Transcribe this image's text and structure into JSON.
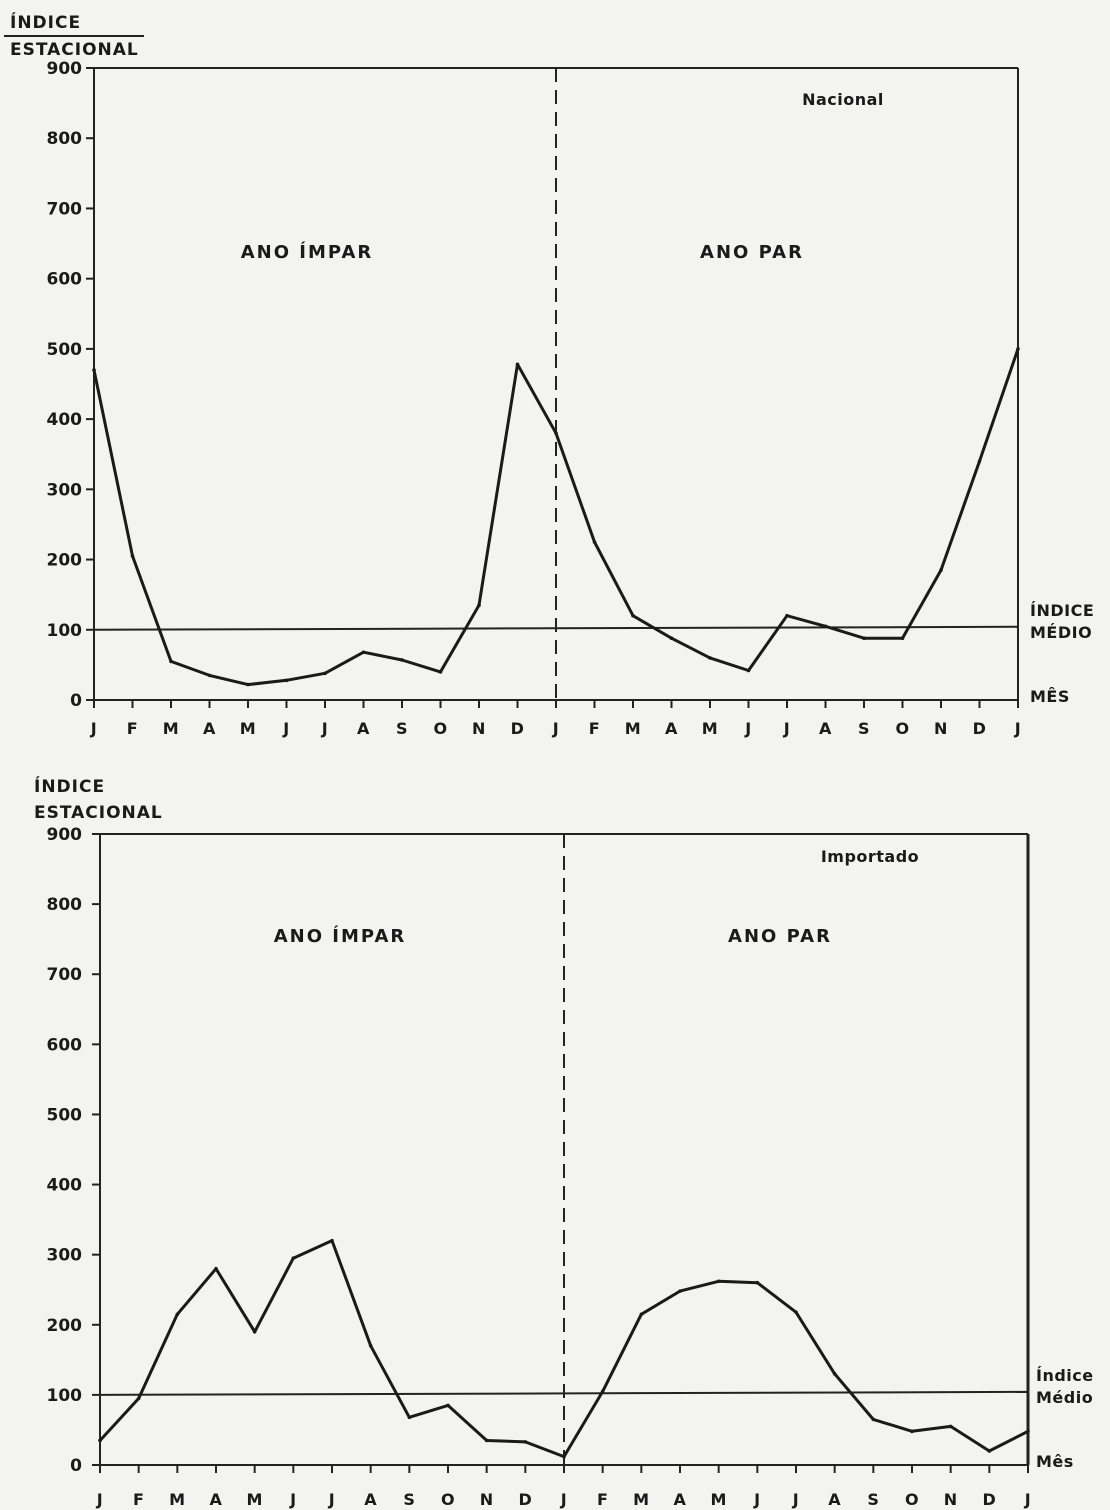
{
  "chart_data": [
    {
      "type": "line",
      "title": "Nacional",
      "ylabel": [
        "ÍNDICE",
        "ESTACIONAL"
      ],
      "ylim": [
        0,
        900
      ],
      "yticks": [
        "0",
        "100",
        "200",
        "300",
        "400",
        "500",
        "600",
        "700",
        "800",
        "900"
      ],
      "categories": [
        "J",
        "F",
        "M",
        "A",
        "M",
        "J",
        "J",
        "A",
        "S",
        "O",
        "N",
        "D",
        "J",
        "F",
        "M",
        "A",
        "M",
        "J",
        "J",
        "A",
        "S",
        "O",
        "N",
        "D",
        "J"
      ],
      "regions": [
        "ANO ÍMPAR",
        "ANO PAR"
      ],
      "reference_line": {
        "value": 100,
        "label": [
          "ÍNDICE",
          "MÉDIO"
        ]
      },
      "xlabel": "MÊS",
      "values": [
        470,
        205,
        55,
        35,
        22,
        28,
        38,
        68,
        57,
        40,
        135,
        478,
        380,
        225,
        120,
        88,
        60,
        42,
        120,
        105,
        88,
        88,
        185,
        340,
        500
      ]
    },
    {
      "type": "line",
      "title": "Importado",
      "ylabel": [
        "ÍNDICE",
        "ESTACIONAL"
      ],
      "ylim": [
        0,
        900
      ],
      "yticks": [
        "0",
        "100",
        "200",
        "300",
        "400",
        "500",
        "600",
        "700",
        "800",
        "900"
      ],
      "categories": [
        "J",
        "F",
        "M",
        "A",
        "M",
        "J",
        "J",
        "A",
        "S",
        "O",
        "N",
        "D",
        "J",
        "F",
        "M",
        "A",
        "M",
        "J",
        "J",
        "A",
        "S",
        "O",
        "N",
        "D",
        "J"
      ],
      "regions": [
        "ANO ÍMPAR",
        "ANO PAR"
      ],
      "reference_line": {
        "value": 100,
        "label": [
          "Índice",
          "Médio"
        ]
      },
      "xlabel": "Mês",
      "values": [
        35,
        95,
        215,
        280,
        190,
        295,
        320,
        170,
        68,
        85,
        35,
        33,
        12,
        105,
        215,
        248,
        262,
        260,
        218,
        130,
        65,
        48,
        55,
        20,
        48
      ]
    }
  ]
}
